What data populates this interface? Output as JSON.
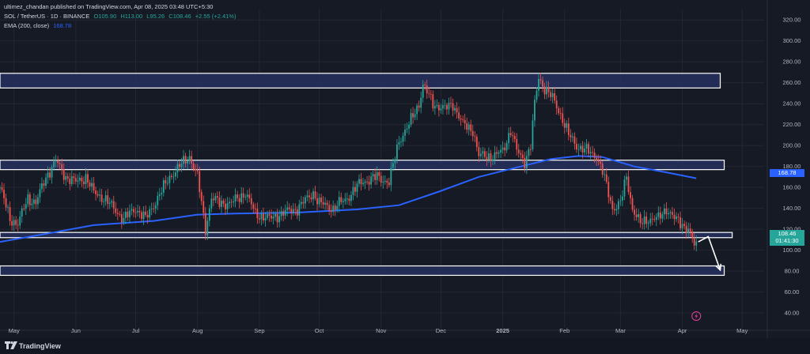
{
  "header": {
    "published": "ultimez_chandan published on TradingView.com, Apr 08, 2025 03:48 UTC+5:30",
    "symbol": "SOL / TetherUS · 1D · BINANCE",
    "open": "O105.90",
    "high": "H113.00",
    "low": "L95.26",
    "close": "C108.46",
    "change": "+2.55 (+2.41%)",
    "ema_label": "EMA (200, close)",
    "ema_value": "168.78"
  },
  "price_tags": {
    "ema": "168.78",
    "last_price": "108.46",
    "countdown": "01:41:30"
  },
  "footer": {
    "brand": "TradingView",
    "logo_icon": "tradingview-logo-icon"
  },
  "colors": {
    "background": "#161a25",
    "up": "#26a69a",
    "down": "#ef5350",
    "ema": "#2962ff",
    "zone_fill": "#24305e",
    "zone_stroke": "#ffffff",
    "text": "#b2b5be"
  },
  "chart_data": {
    "type": "candlestick",
    "instrument": "SOL / TetherUS",
    "interval": "1D",
    "exchange": "BINANCE",
    "ylim": [
      25,
      330
    ],
    "y_ticks": [
      40,
      60,
      80,
      100,
      120,
      140,
      160,
      180,
      200,
      220,
      240,
      260,
      280,
      300,
      320
    ],
    "y_tick_labels": [
      "40.00",
      "60.00",
      "80.00",
      "100.00",
      "120.00",
      "140.00",
      "160.00",
      "180.00",
      "200.00",
      "220.00",
      "240.00",
      "260.00",
      "280.00",
      "300.00",
      "320.00"
    ],
    "x_range": [
      "2024-04-24",
      "2025-05-12"
    ],
    "x_ticks": [
      {
        "date": "2024-05-01",
        "label": "May"
      },
      {
        "date": "2024-06-01",
        "label": "Jun"
      },
      {
        "date": "2024-07-01",
        "label": "Jul"
      },
      {
        "date": "2024-08-01",
        "label": "Aug"
      },
      {
        "date": "2024-09-01",
        "label": "Sep"
      },
      {
        "date": "2024-10-01",
        "label": "Oct"
      },
      {
        "date": "2024-11-01",
        "label": "Nov"
      },
      {
        "date": "2024-12-01",
        "label": "Dec"
      },
      {
        "date": "2025-01-01",
        "label": "2025"
      },
      {
        "date": "2025-02-01",
        "label": "Feb"
      },
      {
        "date": "2025-03-01",
        "label": "Mar"
      },
      {
        "date": "2025-04-01",
        "label": "Apr"
      },
      {
        "date": "2025-05-01",
        "label": "May"
      }
    ],
    "price_path": [
      [
        "2024-04-24",
        160
      ],
      [
        "2024-04-29",
        130
      ],
      [
        "2024-05-03",
        125
      ],
      [
        "2024-05-08",
        150
      ],
      [
        "2024-05-12",
        145
      ],
      [
        "2024-05-17",
        170
      ],
      [
        "2024-05-22",
        185
      ],
      [
        "2024-05-27",
        170
      ],
      [
        "2024-06-01",
        165
      ],
      [
        "2024-06-06",
        170
      ],
      [
        "2024-06-10",
        155
      ],
      [
        "2024-06-15",
        150
      ],
      [
        "2024-06-20",
        140
      ],
      [
        "2024-06-25",
        130
      ],
      [
        "2024-07-01",
        140
      ],
      [
        "2024-07-06",
        130
      ],
      [
        "2024-07-12",
        150
      ],
      [
        "2024-07-18",
        170
      ],
      [
        "2024-07-23",
        180
      ],
      [
        "2024-07-28",
        190
      ],
      [
        "2024-08-01",
        170
      ],
      [
        "2024-08-05",
        120
      ],
      [
        "2024-08-08",
        150
      ],
      [
        "2024-08-12",
        145
      ],
      [
        "2024-08-18",
        145
      ],
      [
        "2024-08-25",
        155
      ],
      [
        "2024-08-30",
        135
      ],
      [
        "2024-09-06",
        130
      ],
      [
        "2024-09-12",
        135
      ],
      [
        "2024-09-20",
        140
      ],
      [
        "2024-09-28",
        155
      ],
      [
        "2024-10-01",
        145
      ],
      [
        "2024-10-08",
        140
      ],
      [
        "2024-10-15",
        150
      ],
      [
        "2024-10-22",
        165
      ],
      [
        "2024-10-30",
        170
      ],
      [
        "2024-11-05",
        165
      ],
      [
        "2024-11-10",
        205
      ],
      [
        "2024-11-15",
        220
      ],
      [
        "2024-11-20",
        240
      ],
      [
        "2024-11-22",
        258
      ],
      [
        "2024-11-27",
        240
      ],
      [
        "2024-12-03",
        235
      ],
      [
        "2024-12-07",
        240
      ],
      [
        "2024-12-12",
        220
      ],
      [
        "2024-12-17",
        215
      ],
      [
        "2024-12-20",
        190
      ],
      [
        "2024-12-24",
        190
      ],
      [
        "2024-12-28",
        190
      ],
      [
        "2025-01-01",
        195
      ],
      [
        "2025-01-05",
        215
      ],
      [
        "2025-01-08",
        195
      ],
      [
        "2025-01-12",
        185
      ],
      [
        "2025-01-15",
        200
      ],
      [
        "2025-01-17",
        240
      ],
      [
        "2025-01-19",
        265
      ],
      [
        "2025-01-22",
        255
      ],
      [
        "2025-01-26",
        245
      ],
      [
        "2025-01-30",
        230
      ],
      [
        "2025-02-03",
        210
      ],
      [
        "2025-02-07",
        200
      ],
      [
        "2025-02-12",
        195
      ],
      [
        "2025-02-17",
        190
      ],
      [
        "2025-02-20",
        175
      ],
      [
        "2025-02-25",
        140
      ],
      [
        "2025-03-01",
        145
      ],
      [
        "2025-03-04",
        170
      ],
      [
        "2025-03-07",
        140
      ],
      [
        "2025-03-11",
        125
      ],
      [
        "2025-03-15",
        130
      ],
      [
        "2025-03-20",
        130
      ],
      [
        "2025-03-24",
        140
      ],
      [
        "2025-03-28",
        130
      ],
      [
        "2025-04-01",
        125
      ],
      [
        "2025-04-04",
        120
      ],
      [
        "2025-04-07",
        105
      ],
      [
        "2025-04-08",
        108.46
      ]
    ],
    "ema": {
      "name": "EMA (200, close)",
      "last_value": 168.78,
      "points": [
        [
          "2024-04-24",
          108
        ],
        [
          "2024-05-15",
          115
        ],
        [
          "2024-06-10",
          124
        ],
        [
          "2024-07-10",
          128
        ],
        [
          "2024-08-01",
          134
        ],
        [
          "2024-08-20",
          135
        ],
        [
          "2024-09-20",
          136
        ],
        [
          "2024-10-20",
          139
        ],
        [
          "2024-11-10",
          143
        ],
        [
          "2024-11-30",
          156
        ],
        [
          "2024-12-20",
          170
        ],
        [
          "2025-01-10",
          180
        ],
        [
          "2025-01-25",
          187
        ],
        [
          "2025-02-08",
          190
        ],
        [
          "2025-02-20",
          189
        ],
        [
          "2025-03-08",
          180
        ],
        [
          "2025-03-25",
          174
        ],
        [
          "2025-04-08",
          168.78
        ]
      ]
    },
    "zones": [
      {
        "from": "2024-04-24",
        "to": "2025-04-20",
        "low": 255,
        "high": 269
      },
      {
        "from": "2024-04-24",
        "to": "2025-04-22",
        "low": 177,
        "high": 186
      },
      {
        "from": "2024-04-24",
        "to": "2025-04-26",
        "low": 112,
        "high": 117
      },
      {
        "from": "2024-04-24",
        "to": "2025-04-22",
        "low": 76,
        "high": 85
      }
    ],
    "arrow": [
      [
        "2025-04-09",
        108
      ],
      [
        "2025-04-14",
        113
      ],
      [
        "2025-04-20",
        81
      ]
    ],
    "last_price": 108.46,
    "grid": true,
    "legend_position": "top-left"
  }
}
